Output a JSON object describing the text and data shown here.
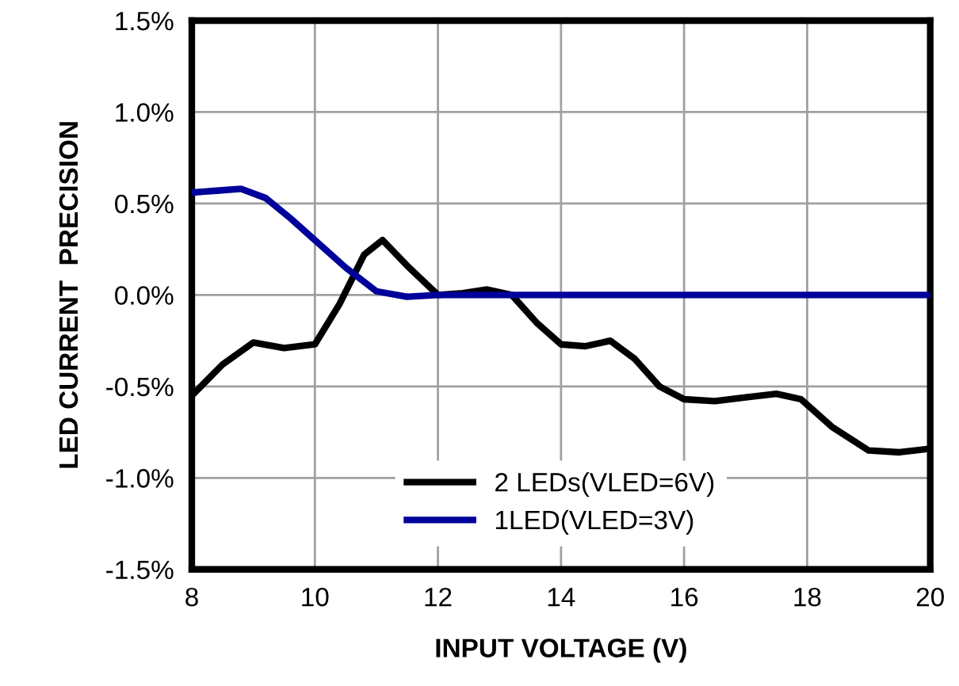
{
  "chart_data": {
    "type": "line",
    "xlabel": "INPUT VOLTAGE (V)",
    "ylabel": "LED CURRENT  PRECISION",
    "xlim": [
      8,
      20
    ],
    "xticks": [
      8,
      10,
      12,
      14,
      16,
      18,
      20
    ],
    "ylim": [
      -1.5,
      1.5
    ],
    "yticks": [
      {
        "value": -1.5,
        "label": "-1.5%"
      },
      {
        "value": -1.0,
        "label": "-1.0%"
      },
      {
        "value": -0.5,
        "label": "-0.5%"
      },
      {
        "value": 0,
        "label": "0.0%"
      },
      {
        "value": 0.5,
        "label": "0.5%"
      },
      {
        "value": 1.0,
        "label": "1.0%"
      },
      {
        "value": 1.5,
        "label": "1.5%"
      }
    ],
    "grid": true,
    "legend": "bottom",
    "marker": "none",
    "line_style": "solid",
    "series": [
      {
        "name": "2 LEDs(VLED=6V)",
        "color": "#000000",
        "x": [
          8,
          8.5,
          9,
          9.5,
          10,
          10.4,
          10.8,
          11.1,
          11.5,
          12,
          12.4,
          12.8,
          13.2,
          13.6,
          14,
          14.4,
          14.8,
          15.2,
          15.6,
          16,
          16.5,
          17,
          17.5,
          17.9,
          18.4,
          19,
          19.5,
          20
        ],
        "values": [
          -0.55,
          -0.38,
          -0.26,
          -0.29,
          -0.27,
          -0.05,
          0.22,
          0.3,
          0.16,
          0.0,
          0.01,
          0.03,
          0.0,
          -0.15,
          -0.27,
          -0.28,
          -0.25,
          -0.35,
          -0.5,
          -0.57,
          -0.58,
          -0.56,
          -0.54,
          -0.57,
          -0.72,
          -0.85,
          -0.86,
          -0.84
        ]
      },
      {
        "name": "1LED(VLED=3V)",
        "color": "#00009a",
        "x": [
          8,
          8.4,
          8.8,
          9.2,
          9.6,
          10,
          10.5,
          11,
          11.5,
          12,
          13,
          14,
          16,
          18,
          20
        ],
        "values": [
          0.56,
          0.57,
          0.58,
          0.53,
          0.42,
          0.3,
          0.15,
          0.02,
          -0.01,
          0.0,
          0.0,
          0.0,
          0.0,
          0.0,
          0.0
        ]
      }
    ]
  }
}
